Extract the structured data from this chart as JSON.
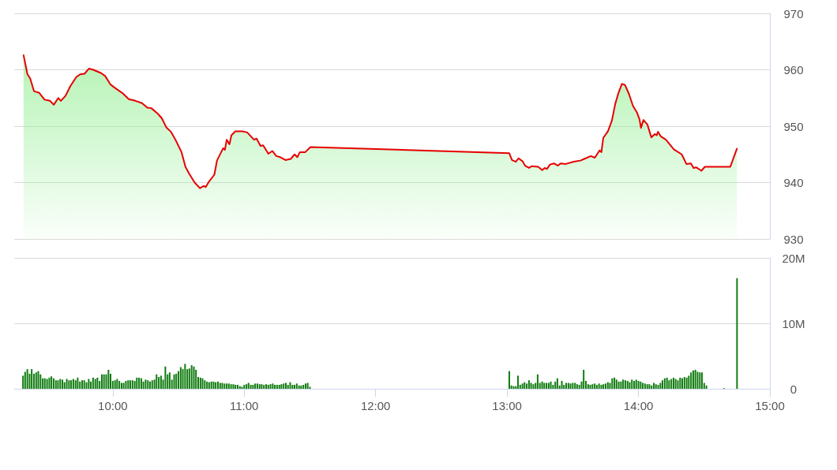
{
  "chart_data": [
    {
      "type": "area",
      "xlim": [
        9.25,
        15
      ],
      "ylim": [
        930,
        970
      ],
      "yticks": [
        930,
        940,
        950,
        960,
        970
      ],
      "grid": "y",
      "tick_labels": "y",
      "series": [
        {
          "color": "#e60000",
          "x": [
            9.321,
            9.351,
            9.371,
            9.401,
            9.441,
            9.481,
            9.521,
            9.551,
            9.585,
            9.605,
            9.641,
            9.677,
            9.722,
            9.752,
            9.785,
            9.818,
            9.852,
            9.912,
            9.942,
            9.982,
            10.022,
            10.072,
            10.122,
            10.172,
            10.222,
            10.263,
            10.293,
            10.343,
            10.373,
            10.407,
            10.443,
            10.479,
            10.523,
            10.553,
            10.583,
            10.623,
            10.663,
            10.693,
            10.707,
            10.733,
            10.773,
            10.793,
            10.84,
            10.853,
            10.867,
            10.888,
            10.903,
            10.933,
            10.984,
            11.023,
            11.074,
            11.094,
            11.124,
            11.144,
            11.184,
            11.214,
            11.244,
            11.274,
            11.314,
            11.354,
            11.384,
            11.404,
            11.424,
            11.465,
            11.504,
            13.017,
            13.037,
            13.067,
            13.087,
            13.117,
            13.137,
            13.167,
            13.187,
            13.237,
            13.267,
            13.287,
            13.303,
            13.327,
            13.357,
            13.387,
            13.407,
            13.448,
            13.508,
            13.558,
            13.588,
            13.638,
            13.668,
            13.704,
            13.718,
            13.732,
            13.768,
            13.798,
            13.824,
            13.848,
            13.874,
            13.898,
            13.928,
            13.958,
            13.989,
            14.008,
            14.019,
            14.038,
            14.068,
            14.098,
            14.124,
            14.139,
            14.149,
            14.169,
            14.209,
            14.269,
            14.329,
            14.365,
            14.399,
            14.419,
            14.439,
            14.479,
            14.505,
            14.699,
            14.749
          ],
          "values": [
            962.6,
            959.2,
            958.5,
            956.2,
            955.9,
            954.7,
            954.5,
            953.8,
            955.0,
            954.5,
            955.4,
            957.1,
            958.7,
            959.2,
            959.3,
            960.2,
            960.0,
            959.4,
            958.9,
            957.4,
            956.7,
            955.9,
            954.8,
            954.5,
            954.1,
            953.3,
            953.2,
            952.2,
            951.4,
            949.8,
            949.0,
            947.5,
            945.4,
            942.8,
            941.5,
            940.0,
            939.0,
            939.4,
            939.2,
            940.2,
            941.4,
            943.9,
            946.1,
            945.8,
            947.6,
            946.8,
            948.4,
            949.1,
            949.1,
            948.9,
            947.6,
            947.8,
            946.5,
            946.6,
            945.1,
            945.6,
            944.7,
            944.5,
            944.0,
            944.2,
            945.0,
            944.5,
            945.4,
            945.4,
            946.3,
            945.2,
            944.0,
            943.7,
            944.3,
            943.8,
            943.0,
            942.6,
            942.9,
            942.8,
            942.2,
            942.6,
            942.4,
            943.2,
            943.4,
            943.0,
            943.4,
            943.3,
            943.7,
            943.9,
            944.2,
            944.7,
            944.4,
            945.7,
            945.4,
            947.9,
            949.1,
            951.0,
            954.0,
            955.9,
            957.5,
            957.3,
            955.7,
            953.6,
            952.4,
            951.2,
            949.7,
            951.1,
            950.3,
            948.0,
            948.6,
            948.4,
            949.0,
            948.2,
            947.6,
            945.9,
            945.0,
            943.3,
            943.4,
            942.6,
            942.7,
            942.1,
            942.8,
            942.8,
            946.0
          ]
        }
      ]
    },
    {
      "type": "bar",
      "xlim": [
        9.25,
        15
      ],
      "xticks": [
        {
          "value": 10,
          "label": "10:00"
        },
        {
          "value": 11,
          "label": "11:00"
        },
        {
          "value": 12,
          "label": "12:00"
        },
        {
          "value": 13,
          "label": "13:00"
        },
        {
          "value": 14,
          "label": "14:00"
        },
        {
          "value": 15,
          "label": "15:00"
        }
      ],
      "ylim": [
        0,
        20
      ],
      "yticks": [
        0,
        {
          "value": 10,
          "label": "10M"
        },
        {
          "value": 20,
          "label": "20M"
        }
      ],
      "grid": "y",
      "color": "#107c10",
      "x": [
        9.317,
        9.333,
        9.35,
        9.367,
        9.383,
        9.4,
        9.417,
        9.433,
        9.45,
        9.467,
        9.483,
        9.5,
        9.517,
        9.533,
        9.55,
        9.567,
        9.583,
        9.6,
        9.617,
        9.633,
        9.65,
        9.667,
        9.683,
        9.7,
        9.717,
        9.733,
        9.75,
        9.767,
        9.783,
        9.8,
        9.817,
        9.833,
        9.85,
        9.867,
        9.883,
        9.9,
        9.917,
        9.933,
        9.95,
        9.967,
        9.983,
        10,
        10.017,
        10.033,
        10.05,
        10.067,
        10.083,
        10.1,
        10.117,
        10.133,
        10.15,
        10.167,
        10.183,
        10.2,
        10.217,
        10.233,
        10.25,
        10.267,
        10.283,
        10.3,
        10.317,
        10.333,
        10.35,
        10.367,
        10.383,
        10.4,
        10.417,
        10.433,
        10.45,
        10.467,
        10.483,
        10.5,
        10.517,
        10.533,
        10.55,
        10.567,
        10.583,
        10.6,
        10.617,
        10.633,
        10.65,
        10.667,
        10.683,
        10.7,
        10.717,
        10.733,
        10.75,
        10.767,
        10.783,
        10.8,
        10.817,
        10.833,
        10.85,
        10.867,
        10.883,
        10.9,
        10.917,
        10.933,
        10.95,
        10.967,
        10.983,
        11,
        11.017,
        11.033,
        11.05,
        11.067,
        11.083,
        11.1,
        11.117,
        11.133,
        11.15,
        11.167,
        11.183,
        11.2,
        11.217,
        11.233,
        11.25,
        11.267,
        11.283,
        11.3,
        11.317,
        11.333,
        11.35,
        11.367,
        11.383,
        11.4,
        11.417,
        11.433,
        11.45,
        11.467,
        11.483,
        11.5,
        13.017,
        13.033,
        13.05,
        13.067,
        13.083,
        13.1,
        13.117,
        13.133,
        13.15,
        13.167,
        13.183,
        13.2,
        13.217,
        13.233,
        13.25,
        13.267,
        13.283,
        13.3,
        13.317,
        13.333,
        13.35,
        13.367,
        13.383,
        13.4,
        13.417,
        13.433,
        13.45,
        13.467,
        13.483,
        13.5,
        13.517,
        13.533,
        13.55,
        13.567,
        13.583,
        13.6,
        13.617,
        13.633,
        13.65,
        13.667,
        13.683,
        13.7,
        13.717,
        13.733,
        13.75,
        13.767,
        13.783,
        13.8,
        13.817,
        13.833,
        13.85,
        13.867,
        13.883,
        13.9,
        13.917,
        13.933,
        13.95,
        13.967,
        13.983,
        14,
        14.017,
        14.033,
        14.05,
        14.067,
        14.083,
        14.1,
        14.117,
        14.133,
        14.15,
        14.167,
        14.183,
        14.2,
        14.217,
        14.233,
        14.25,
        14.267,
        14.283,
        14.3,
        14.317,
        14.333,
        14.35,
        14.367,
        14.383,
        14.4,
        14.417,
        14.433,
        14.45,
        14.467,
        14.483,
        14.5,
        14.517,
        14.65,
        14.75
      ],
      "values": [
        2.0,
        2.6,
        3.0,
        2.3,
        3.0,
        2.3,
        2.5,
        2.7,
        2.2,
        1.6,
        1.6,
        1.5,
        1.7,
        1.9,
        1.6,
        1.3,
        1.3,
        1.5,
        1.4,
        1.0,
        1.5,
        1.3,
        1.3,
        1.5,
        1.3,
        1.7,
        1.1,
        1.3,
        1.3,
        1.0,
        1.5,
        1.1,
        1.7,
        1.5,
        1.7,
        1.2,
        2.2,
        2.2,
        2.2,
        2.9,
        2.3,
        1.2,
        1.3,
        1.5,
        1.2,
        0.9,
        0.9,
        1.2,
        1.3,
        1.3,
        1.3,
        1.2,
        1.7,
        1.7,
        1.6,
        1.1,
        1.4,
        1.3,
        1.1,
        1.3,
        1.4,
        2.2,
        1.8,
        2.0,
        1.4,
        3.4,
        2.2,
        2.5,
        1.4,
        2.2,
        2.3,
        2.7,
        3.3,
        3.0,
        3.8,
        3.0,
        3.1,
        3.6,
        3.4,
        2.9,
        1.8,
        1.7,
        1.6,
        1.3,
        1.1,
        1.0,
        1.1,
        1.1,
        1.0,
        1.1,
        0.9,
        0.9,
        0.8,
        0.8,
        0.8,
        0.7,
        0.7,
        0.6,
        0.6,
        0.4,
        0.3,
        0.6,
        0.7,
        0.9,
        0.6,
        0.6,
        0.8,
        0.8,
        0.7,
        0.7,
        0.6,
        0.7,
        0.6,
        0.7,
        0.8,
        0.6,
        0.6,
        0.6,
        0.7,
        0.8,
        0.9,
        0.6,
        1.0,
        0.6,
        0.6,
        0.8,
        0.5,
        0.5,
        0.6,
        0.8,
        0.9,
        0.3,
        2.7,
        0.5,
        0.4,
        0.4,
        2.0,
        0.6,
        0.8,
        1.0,
        0.8,
        1.3,
        0.9,
        0.7,
        0.9,
        2.2,
        0.9,
        1.1,
        0.9,
        0.9,
        0.9,
        1.1,
        0.6,
        1.1,
        1.6,
        0.5,
        1.2,
        0.6,
        0.9,
        0.9,
        0.8,
        0.9,
        0.9,
        0.7,
        0.6,
        1.1,
        2.9,
        1.2,
        0.7,
        0.6,
        0.7,
        0.8,
        0.6,
        0.8,
        0.6,
        0.7,
        0.8,
        1.0,
        0.9,
        1.6,
        1.7,
        1.4,
        1.1,
        1.1,
        1.4,
        1.3,
        1.2,
        1.0,
        1.4,
        1.2,
        1.4,
        1.2,
        1.1,
        0.9,
        0.8,
        0.7,
        0.7,
        0.5,
        0.9,
        0.7,
        0.6,
        0.9,
        1.3,
        1.6,
        1.7,
        1.3,
        1.5,
        1.7,
        1.5,
        1.3,
        1.7,
        1.6,
        1.8,
        1.7,
        2.0,
        2.5,
        2.8,
        2.9,
        2.6,
        2.5,
        2.5,
        0.9,
        0.5,
        0.1,
        16.9
      ]
    }
  ]
}
